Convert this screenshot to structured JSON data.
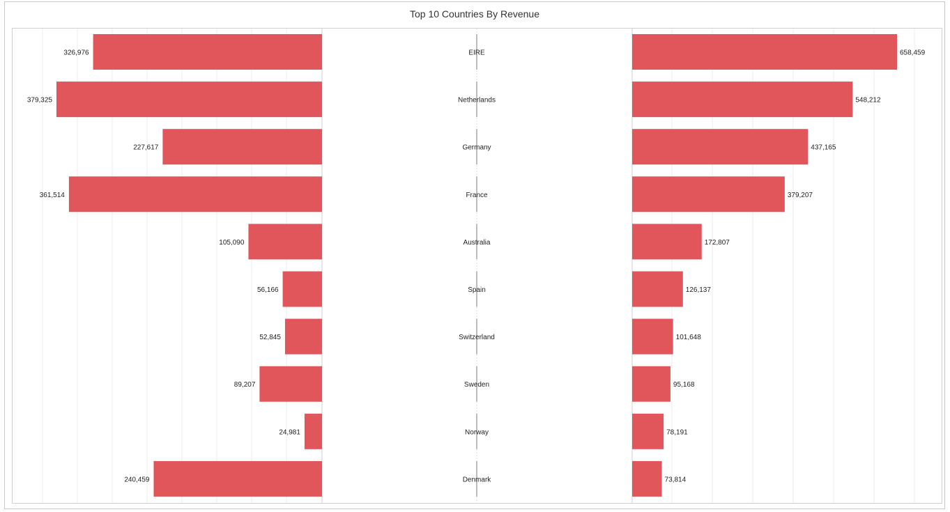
{
  "title": "Top 10 Countries By Revenue",
  "chart_data": {
    "type": "bar",
    "categories": [
      "EIRE",
      "Netherlands",
      "Germany",
      "France",
      "Australia",
      "Spain",
      "Switzerland",
      "Sweden",
      "Norway",
      "Denmark"
    ],
    "series": [
      {
        "values": [
          326976,
          379325,
          227617,
          361514,
          105090,
          56166,
          52845,
          89207,
          24981,
          240459
        ]
      },
      {
        "values": [
          658459,
          548212,
          437165,
          379207,
          172807,
          126137,
          101648,
          95168,
          78191,
          73814
        ]
      }
    ],
    "data_labels": {
      "left": [
        "326,976",
        "379,325",
        "227,617",
        "361,514",
        "105,090",
        "56,166",
        "52,845",
        "89,207",
        "24,981",
        "240,459"
      ],
      "right": [
        "658,459",
        "548,212",
        "437,165",
        "379,207",
        "172,807",
        "126,137",
        "101,648",
        "95,168",
        "78,191",
        "73,814"
      ]
    },
    "layout": "mirrored horizontal bars, left series grows leftward, right series grows rightward, country names in center",
    "grid": true,
    "bar_color": "#E0565B"
  }
}
